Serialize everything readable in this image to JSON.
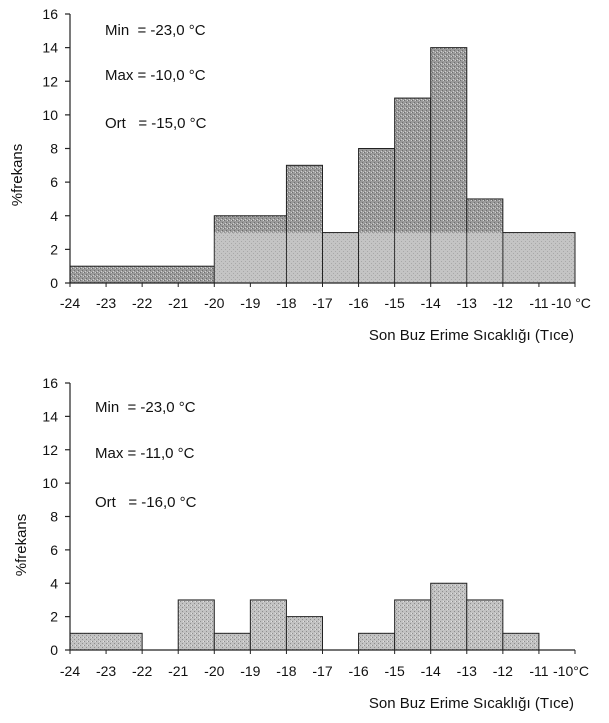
{
  "chart_data": [
    {
      "type": "bar",
      "title": "",
      "xlabel": "Son Buz Erime Sıcaklığı (Tıce)",
      "ylabel": "%frekans",
      "x_tick_labels": [
        "-24",
        "-23",
        "-22",
        "-21",
        "-20",
        "-19",
        "-18",
        "-17",
        "-16",
        "-15",
        "-14",
        "-13",
        "-12",
        "-11",
        "-10 °C"
      ],
      "y_ticks": [
        0,
        2,
        4,
        6,
        8,
        10,
        12,
        14,
        16
      ],
      "ylim": [
        0,
        16
      ],
      "xlim": [
        -24,
        -10
      ],
      "stats": [
        "Min  = -23,0 °C",
        "Max = -10,0 °C",
        "Ort   = -15,0 °C"
      ],
      "series": [
        {
          "values": [
            {
              "x0": -24,
              "x1": -20,
              "y": 1
            },
            {
              "x0": -20,
              "x1": -18,
              "y": 4
            },
            {
              "x0": -18,
              "x1": -17,
              "y": 7
            },
            {
              "x0": -17,
              "x1": -16,
              "y": 3
            },
            {
              "x0": -16,
              "x1": -15,
              "y": 8
            },
            {
              "x0": -15,
              "x1": -14,
              "y": 11
            },
            {
              "x0": -14,
              "x1": -13,
              "y": 14
            },
            {
              "x0": -13,
              "x1": -12,
              "y": 5
            },
            {
              "x0": -12,
              "x1": -10,
              "y": 3
            }
          ]
        },
        {
          "values": [
            {
              "x0": -20,
              "x1": -10,
              "y": 3
            }
          ]
        }
      ],
      "colors": {
        "dark": "#9a9a9a",
        "light": "#c4c4c4",
        "stroke": "#222222"
      },
      "grid": false,
      "legend": "none"
    },
    {
      "type": "bar",
      "title": "",
      "xlabel": "Son Buz Erime Sıcaklığı (Tıce)",
      "ylabel": "%frekans",
      "x_tick_labels": [
        "-24",
        "-23",
        "-22",
        "-21",
        "-20",
        "-19",
        "-18",
        "-17",
        "-16",
        "-15",
        "-14",
        "-13",
        "-12",
        "-11",
        "-10°C"
      ],
      "y_ticks": [
        0,
        2,
        4,
        6,
        8,
        10,
        12,
        14,
        16
      ],
      "ylim": [
        0,
        16
      ],
      "xlim": [
        -24,
        -10
      ],
      "stats": [
        "Min  = -23,0 °C",
        "Max = -11,0 °C",
        "Ort   = -16,0 °C"
      ],
      "series": [
        {
          "values": [
            {
              "x0": -24,
              "x1": -22,
              "y": 1
            },
            {
              "x0": -21,
              "x1": -20,
              "y": 3
            },
            {
              "x0": -20,
              "x1": -19,
              "y": 1
            },
            {
              "x0": -19,
              "x1": -18,
              "y": 3
            },
            {
              "x0": -18,
              "x1": -17,
              "y": 2
            },
            {
              "x0": -16,
              "x1": -15,
              "y": 1
            },
            {
              "x0": -15,
              "x1": -14,
              "y": 3
            },
            {
              "x0": -14,
              "x1": -13,
              "y": 4
            },
            {
              "x0": -13,
              "x1": -12,
              "y": 3
            },
            {
              "x0": -12,
              "x1": -11,
              "y": 1
            }
          ]
        }
      ],
      "colors": {
        "bar": "#c2c2c2",
        "stroke": "#222222"
      },
      "grid": false,
      "legend": "none"
    }
  ]
}
